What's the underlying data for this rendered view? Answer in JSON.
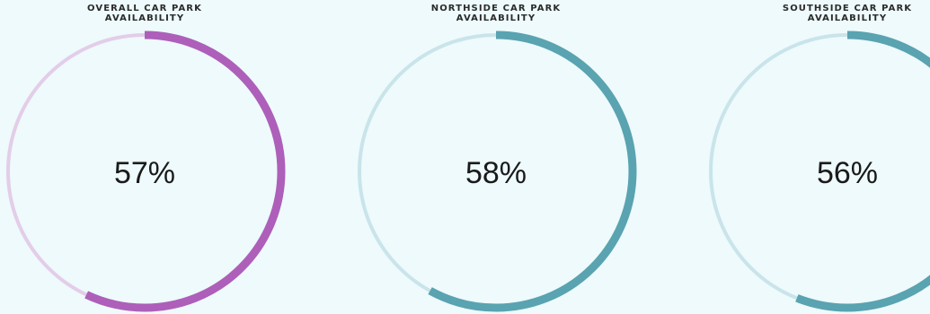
{
  "gauges": [
    {
      "title": "OVERALL CAR PARK\nAVAILABILITY",
      "value_text": "57%",
      "fraction": 0.57,
      "color": "#ad5fba",
      "track_color": "#e3cde9"
    },
    {
      "title": "NORTHSIDE CAR PARK\nAVAILABILITY",
      "value_text": "58%",
      "fraction": 0.58,
      "color": "#5aa3b1",
      "track_color": "#c9e4ea"
    },
    {
      "title": "SOUTHSIDE CAR PARK\nAVAILABILITY",
      "value_text": "56%",
      "fraction": 0.56,
      "color": "#5aa3b1",
      "track_color": "#c9e4ea"
    }
  ]
}
